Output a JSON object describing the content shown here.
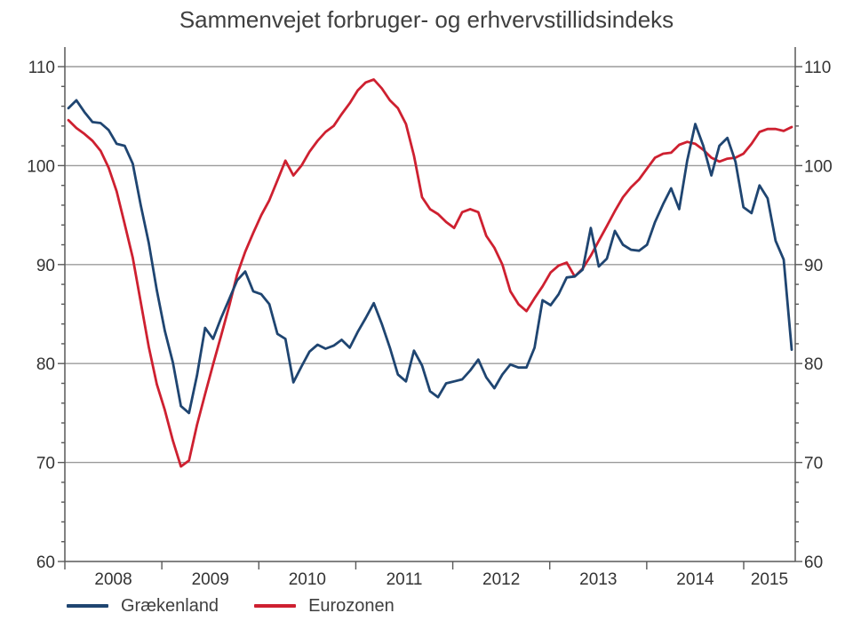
{
  "title": "Sammenvejet forbruger- og erhvervstillidsindeks",
  "legend": [
    {
      "label": "Grækenland",
      "color": "#1f4571"
    },
    {
      "label": "Eurozonen",
      "color": "#ce2030"
    }
  ],
  "chart_data": {
    "type": "line",
    "title": "Sammenvejet forbruger- og erhvervstillidsindeks",
    "x_freq": "monthly",
    "x_start": "2008-01",
    "x_end": "2015-07",
    "x_tick_labels": [
      "2008",
      "2009",
      "2010",
      "2011",
      "2012",
      "2013",
      "2014",
      "2015"
    ],
    "y_ticks": [
      60,
      70,
      80,
      90,
      100,
      110
    ],
    "y_minor_step": 2,
    "ylim": [
      60,
      112
    ],
    "grid": "horizontal",
    "legend_position": "bottom-left",
    "series": [
      {
        "name": "Grækenland",
        "color": "#1f4571",
        "values": [
          105.8,
          106.6,
          105.4,
          104.4,
          104.3,
          103.6,
          102.2,
          102.0,
          100.2,
          96.0,
          92.2,
          87.4,
          83.3,
          80.1,
          75.7,
          75.0,
          78.8,
          83.6,
          82.5,
          84.6,
          86.5,
          88.4,
          89.3,
          87.3,
          87.0,
          86.0,
          83.0,
          82.5,
          78.1,
          79.7,
          81.2,
          81.9,
          81.5,
          81.8,
          82.4,
          81.6,
          83.2,
          84.6,
          86.1,
          84.0,
          81.6,
          78.9,
          78.2,
          81.3,
          79.8,
          77.2,
          76.6,
          78.0,
          78.2,
          78.4,
          79.3,
          80.4,
          78.6,
          77.5,
          78.9,
          79.9,
          79.6,
          79.6,
          81.6,
          86.4,
          85.9,
          87.0,
          88.7,
          88.8,
          89.5,
          93.7,
          89.8,
          90.6,
          93.4,
          92.0,
          91.5,
          91.4,
          92.0,
          94.3,
          96.1,
          97.7,
          95.6,
          100.5,
          104.2,
          102.0,
          99.0,
          102.0,
          102.8,
          100.4,
          95.8,
          95.2,
          98.0,
          96.7,
          92.4,
          90.5,
          81.4
        ]
      },
      {
        "name": "Eurozonen",
        "color": "#ce2030",
        "values": [
          104.6,
          103.8,
          103.2,
          102.5,
          101.5,
          99.8,
          97.4,
          94.1,
          90.7,
          86.2,
          81.7,
          77.9,
          75.3,
          72.2,
          69.6,
          70.2,
          73.8,
          76.9,
          79.9,
          82.8,
          85.8,
          89.0,
          91.3,
          93.2,
          95.0,
          96.5,
          98.5,
          100.5,
          99.0,
          100.0,
          101.4,
          102.5,
          103.4,
          104.0,
          105.2,
          106.3,
          107.6,
          108.4,
          108.7,
          107.8,
          106.6,
          105.8,
          104.2,
          101.0,
          96.8,
          95.6,
          95.1,
          94.3,
          93.7,
          95.3,
          95.6,
          95.3,
          92.9,
          91.7,
          90.0,
          87.3,
          86.0,
          85.3,
          86.6,
          87.8,
          89.2,
          89.9,
          90.2,
          88.8,
          89.6,
          90.9,
          92.4,
          93.9,
          95.4,
          96.8,
          97.8,
          98.6,
          99.7,
          100.8,
          101.2,
          101.3,
          102.1,
          102.4,
          102.2,
          101.6,
          100.8,
          100.4,
          100.7,
          100.8,
          101.2,
          102.2,
          103.4,
          103.7,
          103.7,
          103.5,
          103.9
        ]
      }
    ]
  }
}
